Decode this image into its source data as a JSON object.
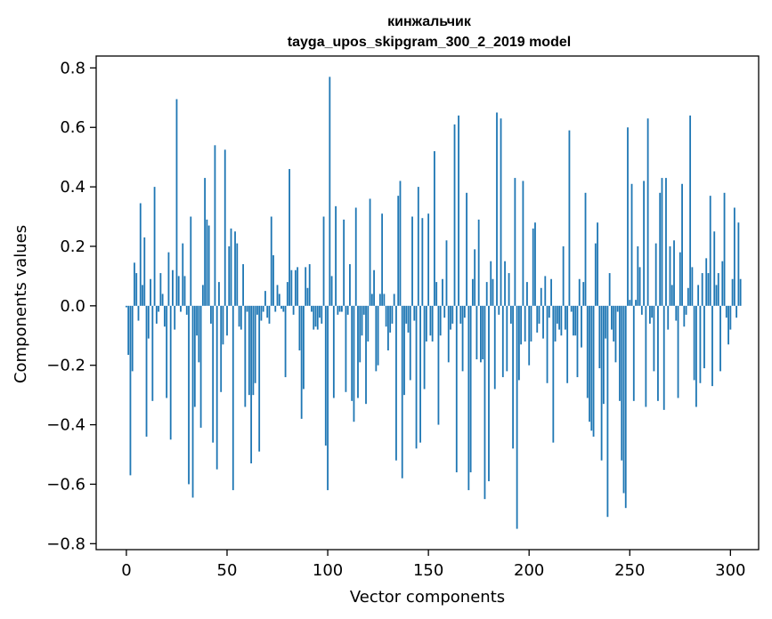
{
  "chart_data": {
    "type": "bar",
    "title": "кинжальчик",
    "subtitle": "tayga_upos_skipgram_300_2_2019 model",
    "xlabel": "Vector components",
    "ylabel": "Components values",
    "xlim": [
      -15,
      314
    ],
    "ylim": [
      -0.82,
      0.84
    ],
    "xticks": [
      0,
      50,
      100,
      150,
      200,
      250,
      300
    ],
    "yticks": [
      -0.8,
      -0.6,
      -0.4,
      -0.2,
      0.0,
      0.2,
      0.4,
      0.6,
      0.8
    ],
    "xtick_labels": [
      "0",
      "50",
      "100",
      "150",
      "200",
      "250",
      "300"
    ],
    "ytick_labels": [
      "−0.8",
      "−0.6",
      "−0.4",
      "−0.2",
      "0.0",
      "0.2",
      "0.4",
      "0.6",
      "0.8"
    ],
    "grid": false,
    "bar_color": "#1f77b4",
    "values": [
      -0.005,
      -0.165,
      -0.57,
      -0.22,
      0.145,
      0.11,
      -0.05,
      0.345,
      0.07,
      0.23,
      -0.44,
      -0.11,
      0.09,
      -0.32,
      0.4,
      -0.06,
      -0.02,
      0.11,
      0.04,
      -0.07,
      -0.31,
      0.18,
      -0.45,
      0.12,
      -0.08,
      0.695,
      0.1,
      -0.02,
      0.21,
      0.1,
      -0.03,
      -0.6,
      0.3,
      -0.645,
      -0.34,
      -0.1,
      -0.19,
      -0.41,
      0.07,
      0.43,
      0.29,
      0.27,
      -0.06,
      -0.46,
      0.54,
      -0.55,
      0.08,
      -0.29,
      -0.13,
      0.525,
      -0.1,
      0.2,
      0.26,
      -0.62,
      0.25,
      0.21,
      -0.07,
      -0.08,
      0.14,
      -0.34,
      -0.02,
      -0.3,
      -0.53,
      -0.3,
      -0.26,
      -0.03,
      -0.49,
      -0.05,
      -0.02,
      0.05,
      -0.04,
      -0.06,
      0.3,
      0.17,
      -0.02,
      0.07,
      0.04,
      -0.01,
      -0.02,
      -0.24,
      0.08,
      0.46,
      0.12,
      -0.03,
      0.12,
      0.13,
      -0.15,
      -0.38,
      -0.28,
      0.13,
      0.06,
      0.14,
      -0.02,
      -0.08,
      -0.07,
      -0.08,
      -0.04,
      -0.06,
      0.3,
      -0.47,
      -0.62,
      0.77,
      0.1,
      -0.31,
      0.335,
      -0.03,
      -0.02,
      -0.02,
      0.29,
      -0.29,
      -0.03,
      0.14,
      -0.32,
      -0.39,
      0.33,
      -0.31,
      -0.19,
      -0.1,
      -0.03,
      -0.33,
      -0.12,
      0.36,
      0.04,
      0.12,
      -0.22,
      -0.2,
      0.04,
      0.31,
      0.04,
      -0.07,
      -0.15,
      -0.09,
      -0.06,
      0.04,
      -0.52,
      0.37,
      0.42,
      -0.58,
      -0.3,
      -0.06,
      -0.09,
      -0.25,
      0.3,
      -0.05,
      -0.48,
      0.4,
      -0.46,
      0.295,
      -0.28,
      -0.12,
      0.31,
      -0.1,
      -0.12,
      0.52,
      0.08,
      -0.4,
      -0.1,
      0.09,
      -0.04,
      0.22,
      -0.19,
      -0.08,
      -0.06,
      0.61,
      -0.56,
      0.64,
      -0.06,
      -0.22,
      -0.04,
      0.38,
      -0.62,
      -0.56,
      0.09,
      0.19,
      -0.18,
      0.29,
      -0.19,
      -0.18,
      -0.65,
      0.08,
      -0.59,
      0.15,
      0.09,
      -0.28,
      0.65,
      -0.03,
      0.63,
      -0.24,
      0.15,
      -0.22,
      0.11,
      -0.06,
      -0.48,
      0.43,
      -0.75,
      -0.25,
      -0.13,
      0.42,
      -0.12,
      0.08,
      -0.2,
      -0.12,
      0.26,
      0.28,
      -0.09,
      -0.06,
      0.06,
      -0.11,
      0.1,
      -0.26,
      -0.04,
      0.09,
      -0.46,
      -0.12,
      -0.06,
      -0.08,
      -0.1,
      0.2,
      -0.08,
      -0.26,
      0.59,
      -0.02,
      -0.1,
      -0.1,
      -0.24,
      0.09,
      -0.14,
      0.08,
      0.38,
      -0.31,
      -0.39,
      -0.42,
      -0.44,
      0.21,
      0.28,
      -0.21,
      -0.52,
      -0.33,
      -0.11,
      -0.71,
      0.11,
      -0.08,
      -0.12,
      -0.19,
      -0.02,
      -0.32,
      -0.52,
      -0.63,
      -0.68,
      0.6,
      0.02,
      0.41,
      -0.32,
      0.02,
      0.2,
      0.13,
      -0.03,
      0.42,
      -0.34,
      0.63,
      -0.06,
      -0.04,
      -0.22,
      0.21,
      -0.32,
      0.38,
      0.43,
      -0.35,
      0.43,
      -0.08,
      0.2,
      0.07,
      0.22,
      -0.05,
      -0.31,
      0.18,
      0.41,
      -0.07,
      -0.03,
      0.06,
      0.64,
      0.13,
      -0.25,
      -0.34,
      0.07,
      -0.26,
      0.11,
      -0.21,
      0.16,
      0.11,
      0.37,
      -0.27,
      0.25,
      0.07,
      0.11,
      -0.22,
      0.15,
      0.38,
      -0.04,
      -0.13,
      -0.08,
      0.09,
      0.33,
      -0.04,
      0.28,
      0.09
    ]
  }
}
